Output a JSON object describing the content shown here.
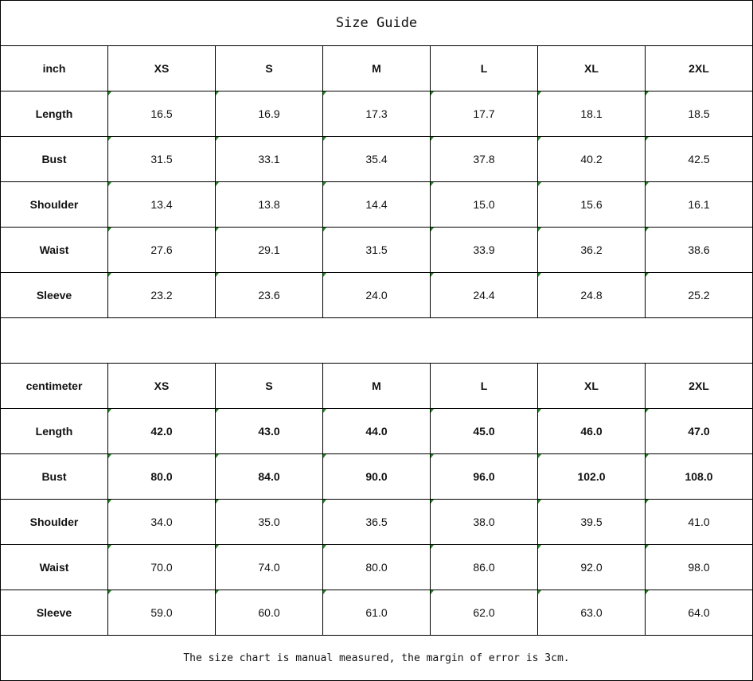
{
  "title": "Size Guide",
  "sizes": [
    "XS",
    "S",
    "M",
    "L",
    "XL",
    "2XL"
  ],
  "tables": [
    {
      "unit": "inch",
      "rows": [
        {
          "label": "Length",
          "values": [
            "16.5",
            "16.9",
            "17.3",
            "17.7",
            "18.1",
            "18.5"
          ],
          "bold": false
        },
        {
          "label": "Bust",
          "values": [
            "31.5",
            "33.1",
            "35.4",
            "37.8",
            "40.2",
            "42.5"
          ],
          "bold": false
        },
        {
          "label": "Shoulder",
          "values": [
            "13.4",
            "13.8",
            "14.4",
            "15.0",
            "15.6",
            "16.1"
          ],
          "bold": false
        },
        {
          "label": "Waist",
          "values": [
            "27.6",
            "29.1",
            "31.5",
            "33.9",
            "36.2",
            "38.6"
          ],
          "bold": false
        },
        {
          "label": "Sleeve",
          "values": [
            "23.2",
            "23.6",
            "24.0",
            "24.4",
            "24.8",
            "25.2"
          ],
          "bold": false
        }
      ]
    },
    {
      "unit": "centimeter",
      "rows": [
        {
          "label": "Length",
          "values": [
            "42.0",
            "43.0",
            "44.0",
            "45.0",
            "46.0",
            "47.0"
          ],
          "bold": true
        },
        {
          "label": "Bust",
          "values": [
            "80.0",
            "84.0",
            "90.0",
            "96.0",
            "102.0",
            "108.0"
          ],
          "bold": true
        },
        {
          "label": "Shoulder",
          "values": [
            "34.0",
            "35.0",
            "36.5",
            "38.0",
            "39.5",
            "41.0"
          ],
          "bold": false
        },
        {
          "label": "Waist",
          "values": [
            "70.0",
            "74.0",
            "80.0",
            "86.0",
            "92.0",
            "98.0"
          ],
          "bold": false
        },
        {
          "label": "Sleeve",
          "values": [
            "59.0",
            "60.0",
            "61.0",
            "62.0",
            "63.0",
            "64.0"
          ],
          "bold": false
        }
      ]
    }
  ],
  "footnote": "The size chart is manual measured, the margin of error is 3cm.",
  "colors": {
    "border": "#000000",
    "error_marker": "#1a8a1a"
  }
}
